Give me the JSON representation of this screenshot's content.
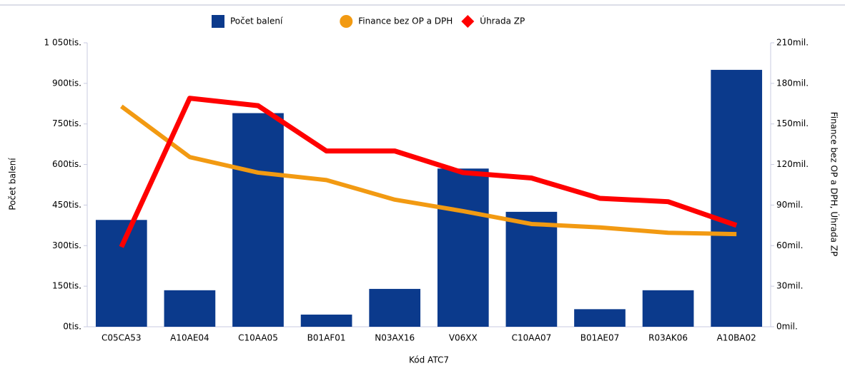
{
  "chart_data": {
    "type": "bar_line_combo",
    "categories": [
      "C05CA53",
      "A10AE04",
      "C10AA05",
      "B01AF01",
      "N03AX16",
      "V06XX",
      "C10AA07",
      "B01AE07",
      "R03AK06",
      "A10BA02"
    ],
    "series": [
      {
        "name": "Počet balení",
        "color": "#0b3a8c",
        "type": "bar",
        "values": [
          395,
          135,
          790,
          45,
          140,
          585,
          425,
          65,
          135,
          950
        ]
      },
      {
        "name": "Finance bez OP a DPH",
        "color": "#f29a12",
        "type": "line",
        "axis": "y2",
        "marker": "circle",
        "values": [
          163,
          125.5,
          114,
          108.5,
          94,
          85.5,
          76,
          73.5,
          69.5,
          68.5
        ]
      },
      {
        "name": "Úhrada ZP",
        "color": "#ff0000",
        "type": "line",
        "axis": "y2",
        "marker": "diamond",
        "values": [
          59,
          169,
          163.5,
          130,
          130,
          114,
          110,
          95,
          92.5,
          75
        ]
      }
    ],
    "xlabel": "Kód ATC7",
    "ylabel": "Počet balení",
    "y2label": "Finance bez OP a DPH, Úhrada ZP",
    "ylim": [
      0,
      1050
    ],
    "yticks": [
      {
        "value": 0,
        "label": "0tis."
      },
      {
        "value": 150,
        "label": "150tis."
      },
      {
        "value": 300,
        "label": "300tis."
      },
      {
        "value": 450,
        "label": "450tis."
      },
      {
        "value": 600,
        "label": "600tis."
      },
      {
        "value": 750,
        "label": "750tis."
      },
      {
        "value": 900,
        "label": "900tis."
      },
      {
        "value": 1050,
        "label": "1 050tis."
      }
    ],
    "y2lim": [
      0,
      210
    ],
    "y2ticks": [
      {
        "value": 0,
        "label": "0mil."
      },
      {
        "value": 30,
        "label": "30mil."
      },
      {
        "value": 60,
        "label": "60mil."
      },
      {
        "value": 90,
        "label": "90mil."
      },
      {
        "value": 120,
        "label": "120mil."
      },
      {
        "value": 150,
        "label": "150mil."
      },
      {
        "value": 180,
        "label": "180mil."
      },
      {
        "value": 210,
        "label": "210mil."
      }
    ],
    "legend": "top"
  }
}
